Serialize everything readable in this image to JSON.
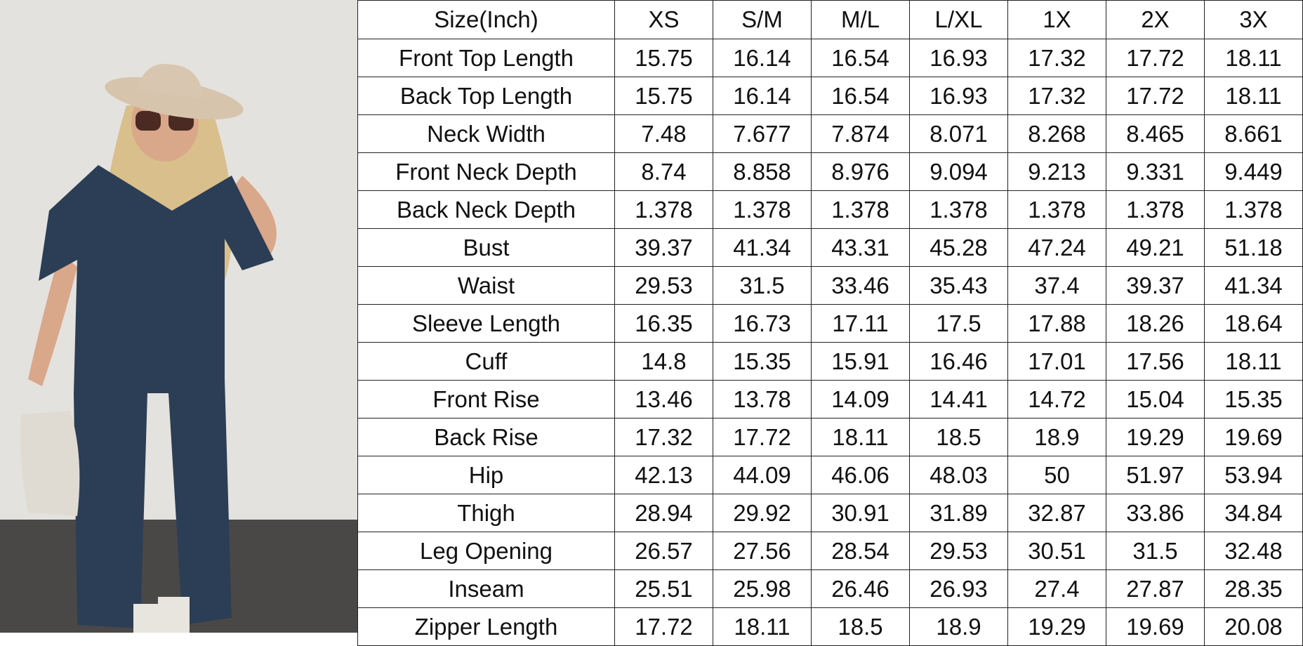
{
  "size_chart": {
    "header": [
      "Size(Inch)",
      "XS",
      "S/M",
      "M/L",
      "L/XL",
      "1X",
      "2X",
      "3X"
    ],
    "rows": [
      {
        "label": "Front Top Length",
        "values": [
          "15.75",
          "16.14",
          "16.54",
          "16.93",
          "17.32",
          "17.72",
          "18.11"
        ]
      },
      {
        "label": "Back Top Length",
        "values": [
          "15.75",
          "16.14",
          "16.54",
          "16.93",
          "17.32",
          "17.72",
          "18.11"
        ]
      },
      {
        "label": "Neck Width",
        "values": [
          "7.48",
          "7.677",
          "7.874",
          "8.071",
          "8.268",
          "8.465",
          "8.661"
        ]
      },
      {
        "label": "Front Neck Depth",
        "values": [
          "8.74",
          "8.858",
          "8.976",
          "9.094",
          "9.213",
          "9.331",
          "9.449"
        ]
      },
      {
        "label": "Back Neck Depth",
        "values": [
          "1.378",
          "1.378",
          "1.378",
          "1.378",
          "1.378",
          "1.378",
          "1.378"
        ]
      },
      {
        "label": "Bust",
        "values": [
          "39.37",
          "41.34",
          "43.31",
          "45.28",
          "47.24",
          "49.21",
          "51.18"
        ]
      },
      {
        "label": "Waist",
        "values": [
          "29.53",
          "31.5",
          "33.46",
          "35.43",
          "37.4",
          "39.37",
          "41.34"
        ]
      },
      {
        "label": "Sleeve Length",
        "values": [
          "16.35",
          "16.73",
          "17.11",
          "17.5",
          "17.88",
          "18.26",
          "18.64"
        ]
      },
      {
        "label": "Cuff",
        "values": [
          "14.8",
          "15.35",
          "15.91",
          "16.46",
          "17.01",
          "17.56",
          "18.11"
        ]
      },
      {
        "label": "Front Rise",
        "values": [
          "13.46",
          "13.78",
          "14.09",
          "14.41",
          "14.72",
          "15.04",
          "15.35"
        ]
      },
      {
        "label": "Back Rise",
        "values": [
          "17.32",
          "17.72",
          "18.11",
          "18.5",
          "18.9",
          "19.29",
          "19.69"
        ]
      },
      {
        "label": "Hip",
        "values": [
          "42.13",
          "44.09",
          "46.06",
          "48.03",
          "50",
          "51.97",
          "53.94"
        ]
      },
      {
        "label": "Thigh",
        "values": [
          "28.94",
          "29.92",
          "30.91",
          "31.89",
          "32.87",
          "33.86",
          "34.84"
        ]
      },
      {
        "label": "Leg Opening",
        "values": [
          "26.57",
          "27.56",
          "28.54",
          "29.53",
          "30.51",
          "31.5",
          "32.48"
        ]
      },
      {
        "label": "Inseam",
        "values": [
          "25.51",
          "25.98",
          "26.46",
          "26.93",
          "27.4",
          "27.87",
          "28.35"
        ]
      },
      {
        "label": "Zipper Length",
        "values": [
          "17.72",
          "18.11",
          "18.5",
          "18.9",
          "19.29",
          "19.69",
          "20.08"
        ]
      }
    ]
  },
  "colors": {
    "jumpsuit": "#2c3e55",
    "wall": "#e6e4e0",
    "floor": "#4a4846",
    "hat": "#d8c6b0"
  }
}
